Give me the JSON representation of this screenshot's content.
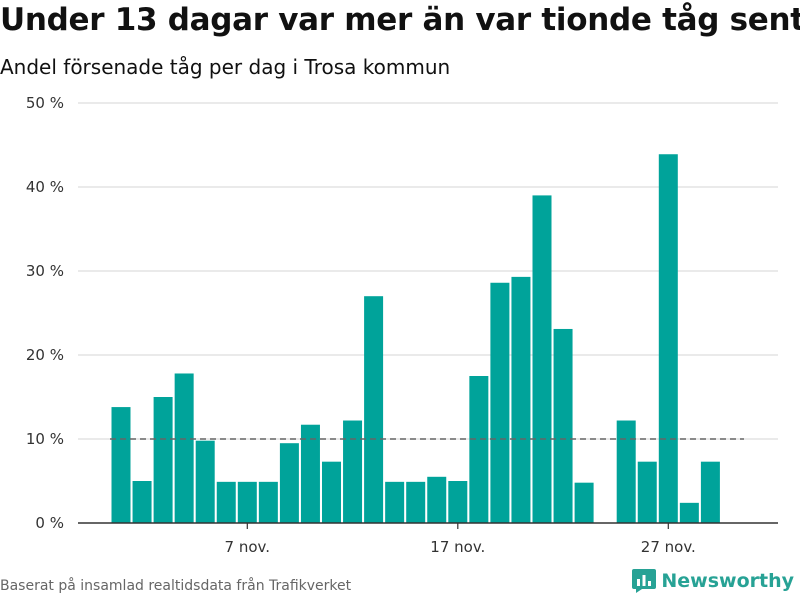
{
  "header": {
    "title": "Under 13 dagar var mer än var tionde tåg sent",
    "subtitle": "Andel försenade tåg per dag i Trosa kommun"
  },
  "footer": {
    "source": "Baserat på insamlad realtidsdata från Trafikverket",
    "brand": "Newsworthy"
  },
  "colors": {
    "bar": "#00a39a",
    "grid": "#dddddd",
    "axis": "#333333",
    "reference_line": "#666666",
    "brand": "#27a295"
  },
  "chart_data": {
    "type": "bar",
    "x_type": "date",
    "x": [
      "2018-11-01",
      "2018-11-02",
      "2018-11-03",
      "2018-11-04",
      "2018-11-05",
      "2018-11-06",
      "2018-11-07",
      "2018-11-08",
      "2018-11-09",
      "2018-11-10",
      "2018-11-11",
      "2018-11-12",
      "2018-11-13",
      "2018-11-14",
      "2018-11-15",
      "2018-11-16",
      "2018-11-17",
      "2018-11-18",
      "2018-11-19",
      "2018-11-20",
      "2018-11-21",
      "2018-11-22",
      "2018-11-23",
      "2018-11-24",
      "2018-11-25",
      "2018-11-26",
      "2018-11-27",
      "2018-11-28",
      "2018-11-29",
      "2018-11-30"
    ],
    "values": [
      13.8,
      5.0,
      15.0,
      17.8,
      9.8,
      4.9,
      4.9,
      4.9,
      9.5,
      11.7,
      7.3,
      12.2,
      27.0,
      4.9,
      4.9,
      5.5,
      5.0,
      17.5,
      28.6,
      29.3,
      39.0,
      23.1,
      4.8,
      null,
      12.2,
      7.3,
      43.9,
      2.4,
      7.3,
      null
    ],
    "ylim": [
      0,
      50
    ],
    "y_ticks": [
      0,
      10,
      20,
      30,
      40,
      50
    ],
    "y_tick_labels": [
      "0 %",
      "10 %",
      "20 %",
      "30 %",
      "40 %",
      "50 %"
    ],
    "x_ticks": [
      "2018-11-07",
      "2018-11-17",
      "2018-11-27"
    ],
    "x_tick_labels": [
      "7 nov.",
      "17 nov.",
      "27 nov."
    ],
    "reference_line": 10,
    "grid": true,
    "xlabel": "",
    "ylabel": ""
  }
}
